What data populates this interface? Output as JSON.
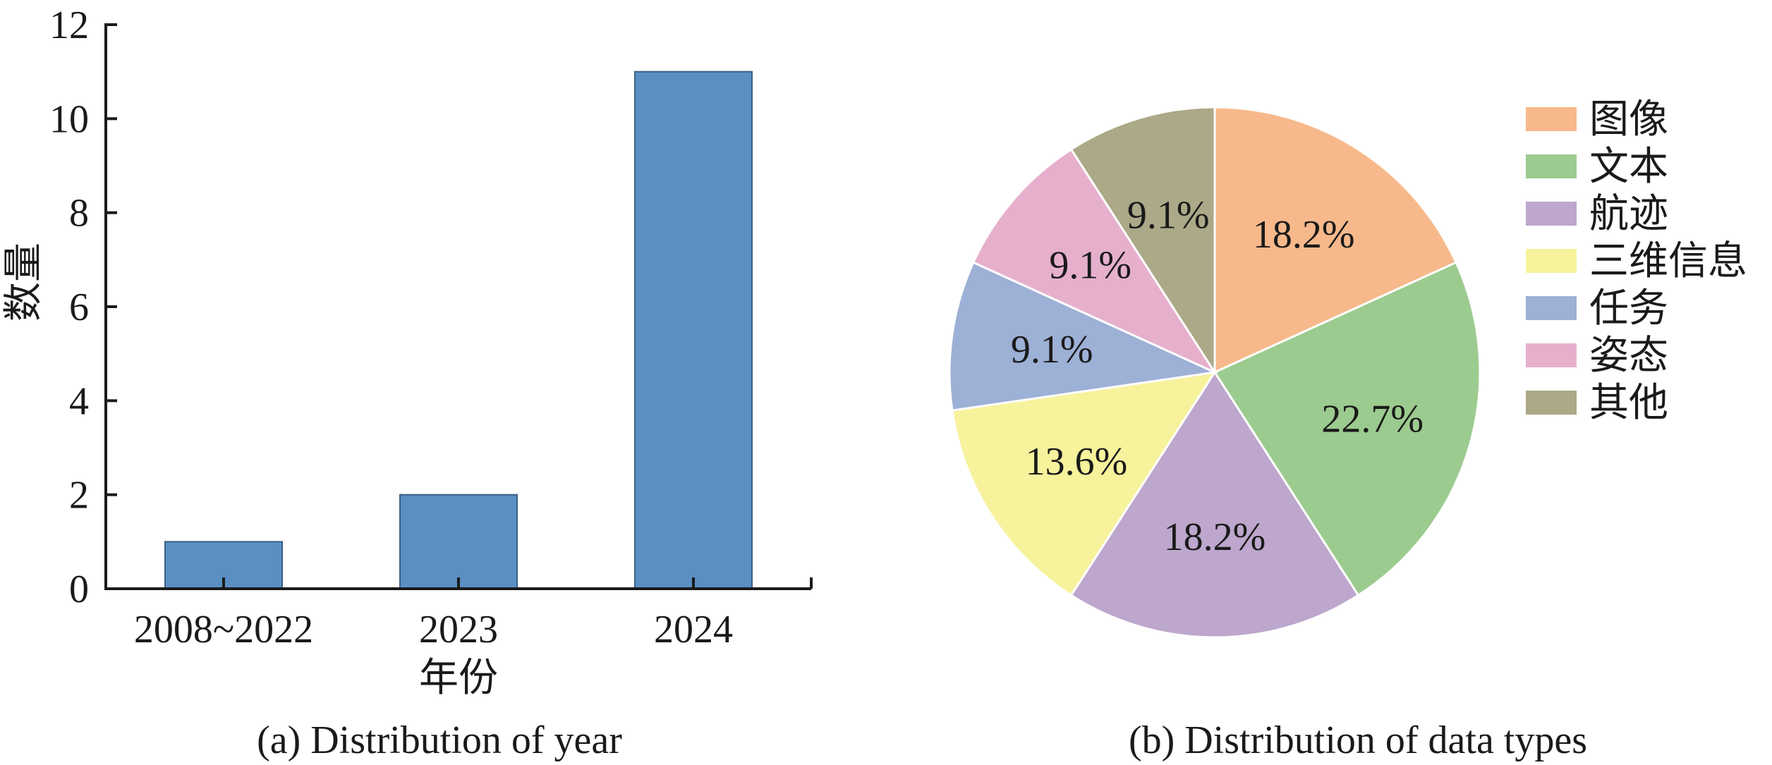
{
  "chart_data": [
    {
      "type": "bar",
      "caption": "(a) Distribution of year",
      "xlabel": "年份",
      "ylabel": "数量",
      "categories": [
        "2008~2022",
        "2023",
        "2024"
      ],
      "values": [
        1,
        2,
        11
      ],
      "ylim": [
        0,
        12
      ],
      "yticks": [
        0,
        2,
        4,
        6,
        8,
        10,
        12
      ],
      "bar_color": "#5b8fc3",
      "grid": false
    },
    {
      "type": "pie",
      "caption": "(b) Distribution of data types",
      "legend_position": "right",
      "slices": [
        {
          "label": "图像",
          "value": 18.2,
          "text": "18.2%",
          "color": "#f7b98b"
        },
        {
          "label": "文本",
          "value": 22.7,
          "text": "22.7%",
          "color": "#9ccb8f"
        },
        {
          "label": "航迹",
          "value": 18.2,
          "text": "18.2%",
          "color": "#bda7cc"
        },
        {
          "label": "三维信息",
          "value": 13.6,
          "text": "13.6%",
          "color": "#f7f29c"
        },
        {
          "label": "任务",
          "value": 9.1,
          "text": "9.1%",
          "color": "#9db0d6"
        },
        {
          "label": "姿态",
          "value": 9.1,
          "text": "9.1%",
          "color": "#e6b0cd"
        },
        {
          "label": "其他",
          "value": 9.1,
          "text": "9.1%",
          "color": "#aba987"
        }
      ]
    }
  ]
}
